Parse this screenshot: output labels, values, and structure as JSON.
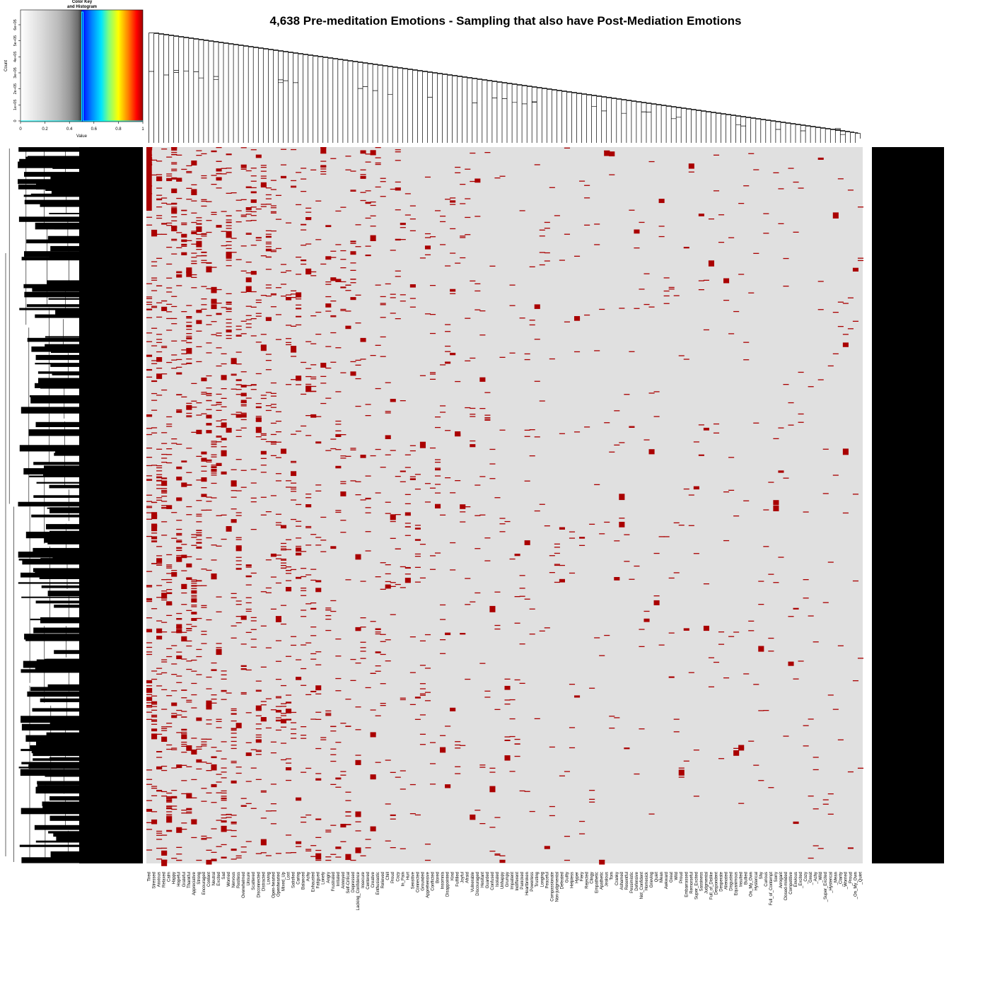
{
  "title": "4,638 Pre-meditation Emotions - Sampling that also have Post-Mediation Emotions",
  "color_key": {
    "title_line1": "Color Key",
    "title_line2": "and Histogram",
    "xlabel": "Value",
    "ylabel": "Count",
    "x_ticks": [
      "0",
      "0.2",
      "0.4",
      "0.6",
      "0.8",
      "1"
    ],
    "y_ticks": [
      "0",
      "1e+05",
      "2e+05",
      "3e+05",
      "4e+05",
      "5e+05",
      "6e+05"
    ],
    "gradient_colors": [
      "#ffffff",
      "#d9d9d9",
      "#bdbdbd",
      "#999999",
      "#6b6b6b",
      "#3a3a3a",
      "#0000ff",
      "#0080ff",
      "#00e5ff",
      "#7fff7f",
      "#ffff00",
      "#ff8000",
      "#ff0000",
      "#a00000"
    ],
    "histogram_color": "#00ffff"
  },
  "chart_data": {
    "type": "heatmap",
    "title": "4,638 Pre-meditation Emotions - Sampling that also have Post-Mediation Emotions",
    "colors": {
      "present": "#aa0000",
      "absent": "#e0e0e0"
    },
    "row_count": 4638,
    "column_labels": [
      "Tired",
      "Stressed",
      "Anxious",
      "Relaxed",
      "Calm",
      "Happy",
      "Hopeful",
      "Grateful",
      "Thankful",
      "Appreciative",
      "Strong",
      "Encouraged",
      "Content",
      "Neutral",
      "Excited",
      "Sad",
      "Worried",
      "Nervous",
      "Restless",
      "Overwhelmed",
      "Unsure",
      "Scattered",
      "Disconnected",
      "Distracted",
      "Loving",
      "Open-hearted",
      "Openhearted",
      "Mixed_Up",
      "Lost",
      "Satisfied",
      "Caring",
      "Balanced",
      "Achy",
      "Exhausted",
      "Fatigued",
      "Lonely",
      "Angry",
      "Frustrated",
      "Irritated",
      "Annoyed",
      "Self-Critical",
      "Depressed",
      "Lacking_Confidence",
      "Insecure",
      "Centered",
      "Creative",
      "Enthusiastic",
      "Relieved",
      "Chill",
      "Proud",
      "Cozy",
      "In_Pain",
      "Hurt",
      "Sensitive",
      "Connected",
      "Grounded",
      "Apprehensive",
      "Conflicted",
      "Bored",
      "Insomnia",
      "Disappointed",
      "Kind",
      "Fulfilled",
      "Joyful",
      "Afraid",
      "Vulnerable",
      "Discouraged",
      "Hesitant",
      "Guarded",
      "Confused",
      "Isolated",
      "Unhappy",
      "Grumpy",
      "Impatient",
      "Indifferent",
      "Panicked",
      "Heartbroken",
      "Powerless",
      "Trusting",
      "Longing",
      "Peaceful",
      "Compassionate",
      "Non-judgmental",
      "Defeated",
      "Guilty",
      "Helpless",
      "Hyper",
      "Fiery",
      "Rejected",
      "Clingy",
      "Empathetic",
      "Apathetic",
      "Jealous",
      "Torn",
      "Cranky",
      "Ashamed",
      "Resentful",
      "Pessimistic",
      "Defensive",
      "Not_Confident",
      "Homesick",
      "Grieving",
      "Quiet",
      "Mean",
      "Awkward",
      "Great",
      "Wild",
      "Proud",
      "Embarrassed",
      "Remorseful",
      "Super_Excited",
      "Sassiness",
      "Judgmental",
      "Full_of_Dislike",
      "Despondent",
      "Desperate",
      "Alienated",
      "Disgusted",
      "Equanimous",
      "Insulted",
      "Bullied",
      "On_My_Own",
      "Hysterical",
      "Shy",
      "Curious",
      "Full_of_Contempt",
      "Sorry",
      "Arrogant",
      "Closed-minded",
      "Competitive",
      "Envious",
      "_Excited",
      "_Cozy",
      "_Great",
      "_Achy",
      "_Wild",
      "_Super_Excited",
      "_Hysterical",
      "_Mean",
      "_Clarity",
      "_Worried",
      "_Proud",
      "_On_My_Own",
      "_Quiet"
    ],
    "column_frequency": "decreasing from left to right",
    "row_dendrogram": "left",
    "column_dendrogram": "top",
    "row_labels": "dense black block (unreadable) on right",
    "legend_placement": "top-left"
  }
}
